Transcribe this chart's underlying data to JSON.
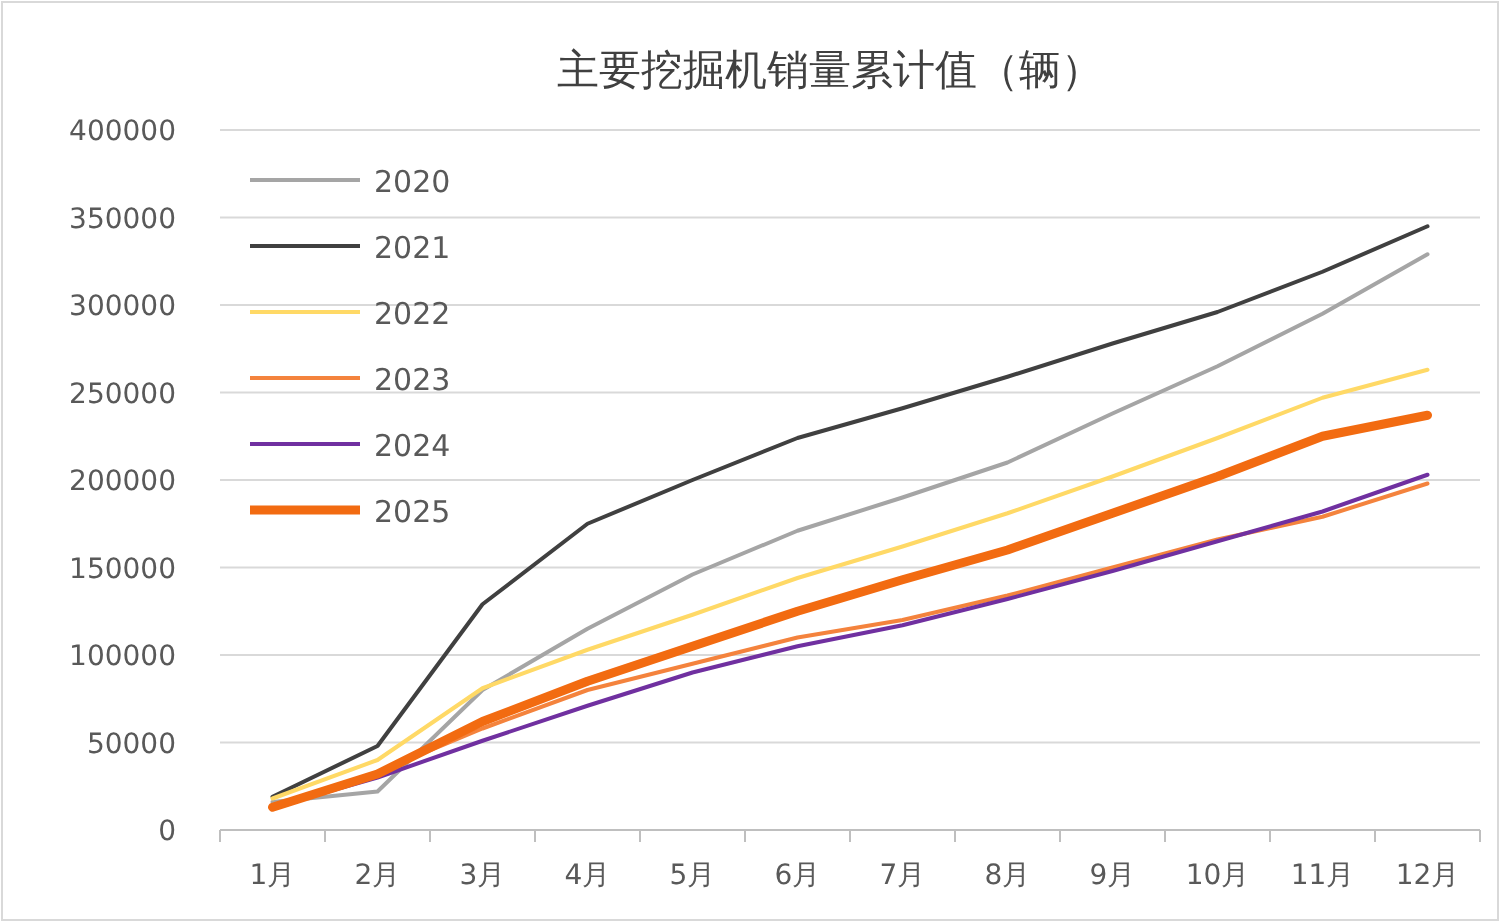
{
  "chart_data": {
    "type": "line",
    "title": "主要挖掘机销量累计值（辆）",
    "categories": [
      "1月",
      "2月",
      "3月",
      "4月",
      "5月",
      "6月",
      "7月",
      "8月",
      "9月",
      "10月",
      "11月",
      "12月"
    ],
    "series": [
      {
        "name": "2020",
        "color": "#a5a5a5",
        "values": [
          16000,
          22000,
          80000,
          115000,
          146000,
          171000,
          190000,
          210000,
          238000,
          265000,
          295000,
          329000
        ]
      },
      {
        "name": "2021",
        "color": "#404040",
        "values": [
          19000,
          48000,
          129000,
          175000,
          200000,
          224000,
          241000,
          259000,
          278000,
          296000,
          319000,
          345000
        ]
      },
      {
        "name": "2022",
        "color": "#ffd966",
        "values": [
          18000,
          40000,
          81000,
          103000,
          123000,
          144000,
          162000,
          181000,
          202000,
          224000,
          247000,
          263000
        ]
      },
      {
        "name": "2023",
        "color": "#f4833d",
        "values": [
          13000,
          33000,
          58000,
          80000,
          95000,
          110000,
          120000,
          134000,
          150000,
          166000,
          179000,
          198000
        ]
      },
      {
        "name": "2024",
        "color": "#7030a0",
        "values": [
          13000,
          30000,
          51000,
          71000,
          90000,
          105000,
          117000,
          132000,
          148000,
          165000,
          182000,
          203000
        ]
      },
      {
        "name": "2025",
        "color": "#f26b11",
        "values": [
          13000,
          32000,
          62000,
          85000,
          105000,
          125000,
          143000,
          160000,
          181000,
          202000,
          225000,
          237000
        ]
      }
    ],
    "ylim": [
      0,
      400000
    ],
    "yticks": [
      0,
      50000,
      100000,
      150000,
      200000,
      250000,
      300000,
      350000,
      400000
    ],
    "grid": "y",
    "legend": "top left",
    "marker": "none",
    "line_style": "solid"
  }
}
